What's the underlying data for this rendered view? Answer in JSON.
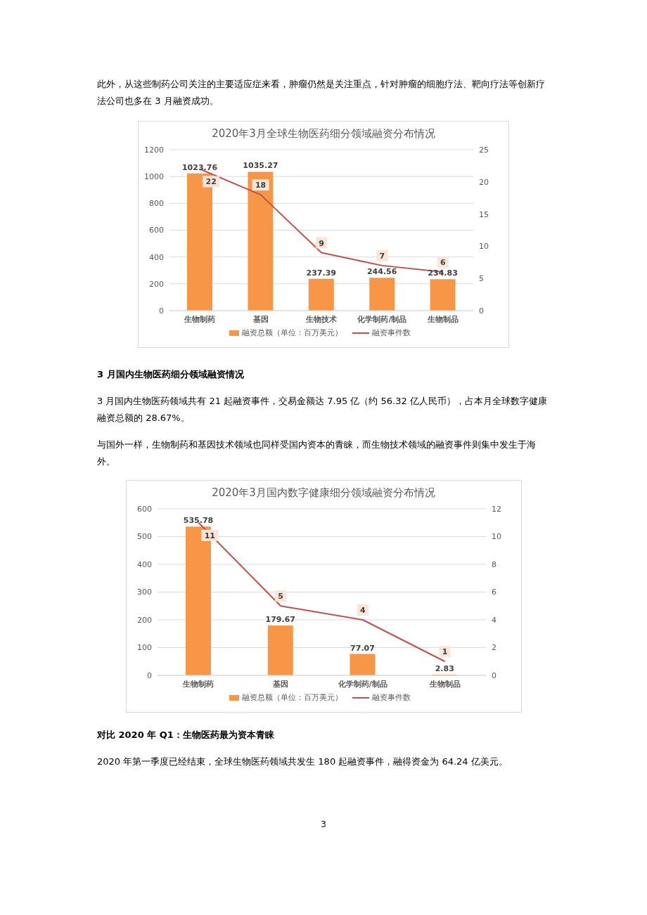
{
  "chart_data": [
    {
      "type": "bar",
      "title": "2020年3月全球生物医药细分领域融资分布情况",
      "annotations": [
        "此外，从这些制药公司关注的主要适应症来看，肿瘤仍然是关注重点，针对肿瘤的细胞疗法、靶向疗法等创新疗法公司也多在 3 月融资成功。"
      ],
      "categories": [
        "生物制药",
        "基因",
        "生物技术",
        "化学制药/制品",
        "生物制品"
      ],
      "series": [
        {
          "name": "融资总额（单位：百万美元）",
          "color": "#f79646",
          "values": [
            1023.76,
            1035.27,
            237.39,
            244.56,
            234.83
          ]
        },
        {
          "name": "融资事件数",
          "type": "line",
          "axis": "y2",
          "color": "#c0504d",
          "values": [
            22,
            18,
            9,
            7,
            6
          ]
        }
      ],
      "ylim": [
        0,
        1200
      ],
      "yticks": [
        0,
        200,
        400,
        600,
        800,
        1000,
        1200
      ],
      "y2lim": [
        0,
        25
      ],
      "y2ticks": [
        0,
        5,
        10,
        15,
        20,
        25
      ],
      "grid": "y",
      "legend": "bottom",
      "data_labels": true,
      "marker": "none",
      "line_style": "solid"
    },
    {
      "type": "bar",
      "title": "2020年3月国内数字健康细分领域融资分布情况",
      "annotations": [
        "3 月国内生物医药细分领域融资情况",
        "3 月国内生物医药领域共有 21 起融资事件，交易金额达 7.95 亿（约 56.32 亿人民币），占本月全球数字健康融资总额的 28.67%。",
        "与国外一样，生物制药和基因技术领域也同样受国内资本的青睐，而生物技术领域的融资事件则集中发生于海外。",
        "对比 2020 年 Q1：生物医药最为资本青睐",
        "2020 年第一季度已经结束，全球生物医药领域共发生 180 起融资事件，融得资金为 64.24 亿美元。",
        "3"
      ],
      "categories": [
        "生物制药",
        "基因",
        "化学制药/制品",
        "生物制品"
      ],
      "series": [
        {
          "name": "融资总额（单位：百万美元）",
          "color": "#f79646",
          "values": [
            535.78,
            179.67,
            77.07,
            2.83
          ]
        },
        {
          "name": "融资事件数",
          "type": "line",
          "axis": "y2",
          "color": "#c0504d",
          "values": [
            11,
            5,
            4,
            1
          ]
        }
      ],
      "ylim": [
        0,
        600
      ],
      "yticks": [
        0,
        100,
        200,
        300,
        400,
        500,
        600
      ],
      "y2lim": [
        0,
        12
      ],
      "y2ticks": [
        0,
        2,
        4,
        6,
        8,
        10,
        12
      ],
      "grid": "y",
      "legend": "bottom",
      "data_labels": true,
      "marker": "none",
      "line_style": "solid"
    }
  ]
}
